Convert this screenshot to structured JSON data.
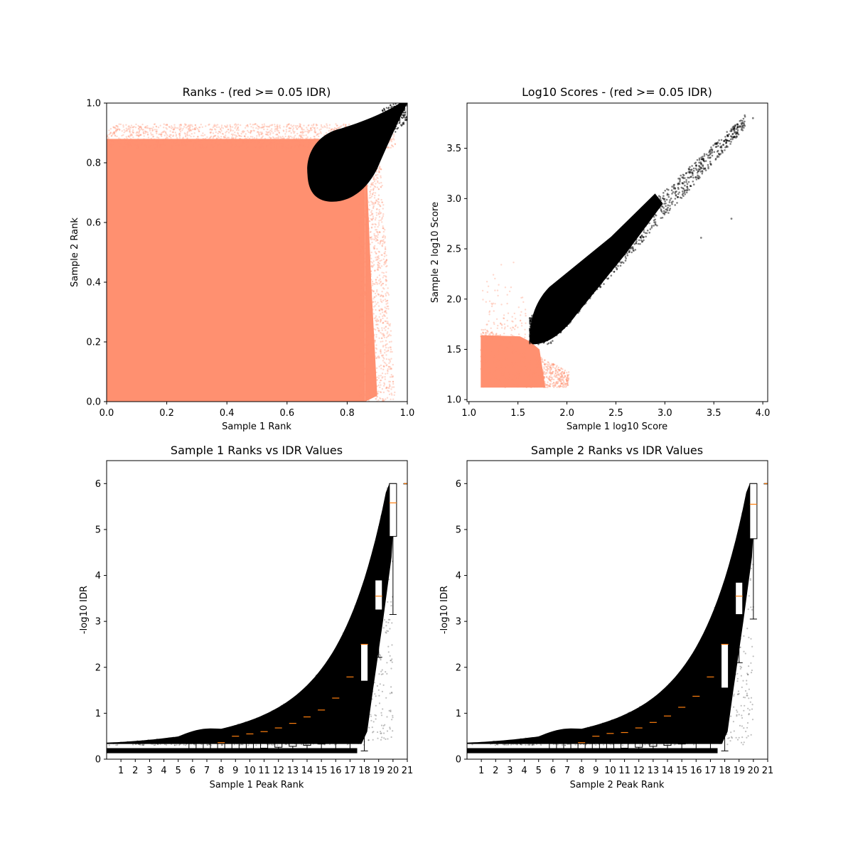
{
  "chart_data": [
    {
      "id": "ranks",
      "type": "scatter",
      "title": "Ranks - (red >= 0.05 IDR)",
      "xlabel": "Sample 1 Rank",
      "ylabel": "Sample 2 Rank",
      "xlim": [
        0.0,
        1.0
      ],
      "ylim": [
        0.0,
        1.0
      ],
      "xticks": [
        "0.0",
        "0.2",
        "0.4",
        "0.6",
        "0.8",
        "1.0"
      ],
      "yticks": [
        "0.0",
        "0.2",
        "0.4",
        "0.6",
        "0.8",
        "1.0"
      ],
      "grid": false,
      "series": [
        {
          "color": "#ff9070",
          "region": {
            "x": [
              0.0,
              0.95
            ],
            "y": [
              0.0,
              0.92
            ]
          }
        },
        {
          "color": "#000000",
          "region": {
            "x": [
              0.66,
              1.0
            ],
            "y": [
              0.67,
              1.0
            ]
          }
        }
      ]
    },
    {
      "id": "scores",
      "type": "scatter",
      "title": "Log10 Scores - (red >= 0.05 IDR)",
      "xlabel": "Sample 1 log10 Score",
      "ylabel": "Sample 2 log10 Score",
      "xlim": [
        0.98,
        4.05
      ],
      "ylim": [
        0.98,
        3.95
      ],
      "xticks": [
        "1.0",
        "1.5",
        "2.0",
        "2.5",
        "3.0",
        "3.5",
        "4.0"
      ],
      "yticks": [
        "1.0",
        "1.5",
        "2.0",
        "2.5",
        "3.0",
        "3.5"
      ],
      "grid": false,
      "series": [
        {
          "color": "#ff9070",
          "region": {
            "x": [
              1.12,
              2.0
            ],
            "y": [
              1.12,
              1.65
            ]
          }
        },
        {
          "color": "#000000",
          "region": {
            "x": [
              1.62,
              3.9
            ],
            "y": [
              1.55,
              3.8
            ]
          }
        }
      ]
    },
    {
      "id": "rank_idr_1",
      "type": "box",
      "title": "Sample 1 Ranks vs IDR Values",
      "xlabel": "Sample 1 Peak Rank",
      "ylabel": "-log10 IDR",
      "xlim": [
        0,
        21
      ],
      "ylim": [
        0,
        6.5
      ],
      "xticks": [
        "1",
        "2",
        "3",
        "4",
        "5",
        "6",
        "7",
        "8",
        "9",
        "10",
        "11",
        "12",
        "13",
        "14",
        "15",
        "16",
        "17",
        "18",
        "19",
        "20",
        "21"
      ],
      "yticks": [
        "0",
        "1",
        "2",
        "3",
        "4",
        "5",
        "6"
      ],
      "categories": [
        1,
        2,
        3,
        4,
        5,
        6,
        7,
        8,
        9,
        10,
        11,
        12,
        13,
        14,
        15,
        16,
        17,
        18,
        19,
        20,
        21
      ],
      "medians": [
        0.18,
        0.18,
        0.18,
        0.18,
        0.18,
        0.18,
        0.18,
        0.36,
        0.5,
        0.55,
        0.6,
        0.68,
        0.78,
        0.92,
        1.07,
        1.33,
        1.79,
        2.5,
        3.55,
        5.58,
        6.0
      ],
      "q1": [
        0.18,
        0.18,
        0.18,
        0.18,
        0.18,
        0.18,
        0.2,
        0.22,
        0.22,
        0.22,
        0.24,
        0.26,
        0.28,
        0.3,
        0.33,
        0.37,
        0.7,
        1.7,
        3.25,
        4.85,
        6.0
      ],
      "q3": [
        0.18,
        0.18,
        0.18,
        0.18,
        0.18,
        0.35,
        0.36,
        0.4,
        0.52,
        0.6,
        0.65,
        0.72,
        0.8,
        0.95,
        1.1,
        1.35,
        1.8,
        2.5,
        3.9,
        6.0,
        6.0
      ],
      "whisker_low": [
        0.18,
        0.18,
        0.18,
        0.18,
        0.18,
        0.18,
        0.18,
        0.18,
        0.18,
        0.18,
        0.18,
        0.18,
        0.18,
        0.18,
        0.18,
        0.18,
        0.18,
        0.18,
        2.22,
        3.15,
        6.0
      ],
      "whisker_high": [
        0.18,
        0.18,
        0.18,
        0.18,
        0.18,
        0.35,
        0.36,
        0.4,
        0.52,
        0.6,
        0.65,
        0.72,
        0.8,
        0.95,
        1.1,
        1.35,
        1.8,
        3.45,
        4.68,
        6.0,
        6.0
      ]
    },
    {
      "id": "rank_idr_2",
      "type": "box",
      "title": "Sample 2 Ranks vs IDR Values",
      "xlabel": "Sample 2 Peak Rank",
      "ylabel": "-log10 IDR",
      "xlim": [
        0,
        21
      ],
      "ylim": [
        0,
        6.5
      ],
      "xticks": [
        "1",
        "2",
        "3",
        "4",
        "5",
        "6",
        "7",
        "8",
        "9",
        "10",
        "11",
        "12",
        "13",
        "14",
        "15",
        "16",
        "17",
        "18",
        "19",
        "20",
        "21"
      ],
      "yticks": [
        "0",
        "1",
        "2",
        "3",
        "4",
        "5",
        "6"
      ],
      "categories": [
        1,
        2,
        3,
        4,
        5,
        6,
        7,
        8,
        9,
        10,
        11,
        12,
        13,
        14,
        15,
        16,
        17,
        18,
        19,
        20,
        21
      ],
      "medians": [
        0.18,
        0.18,
        0.18,
        0.18,
        0.18,
        0.18,
        0.18,
        0.36,
        0.5,
        0.56,
        0.58,
        0.68,
        0.8,
        0.94,
        1.13,
        1.37,
        1.79,
        2.5,
        3.55,
        5.55,
        6.0
      ],
      "q1": [
        0.18,
        0.18,
        0.18,
        0.18,
        0.18,
        0.18,
        0.2,
        0.22,
        0.22,
        0.22,
        0.24,
        0.26,
        0.28,
        0.3,
        0.33,
        0.37,
        0.67,
        1.55,
        3.15,
        4.8,
        6.0
      ],
      "q3": [
        0.18,
        0.18,
        0.18,
        0.18,
        0.18,
        0.35,
        0.36,
        0.4,
        0.52,
        0.6,
        0.62,
        0.72,
        0.82,
        0.97,
        1.15,
        1.4,
        1.8,
        2.5,
        3.85,
        6.0,
        6.0
      ],
      "whisker_low": [
        0.18,
        0.18,
        0.18,
        0.18,
        0.18,
        0.18,
        0.18,
        0.18,
        0.18,
        0.18,
        0.18,
        0.18,
        0.18,
        0.18,
        0.18,
        0.18,
        0.18,
        0.18,
        2.1,
        3.05,
        6.0
      ],
      "whisker_high": [
        0.18,
        0.18,
        0.18,
        0.18,
        0.18,
        0.35,
        0.36,
        0.4,
        0.52,
        0.6,
        0.62,
        0.72,
        0.82,
        0.97,
        1.15,
        1.4,
        1.8,
        3.45,
        4.68,
        6.0,
        6.0
      ]
    }
  ]
}
